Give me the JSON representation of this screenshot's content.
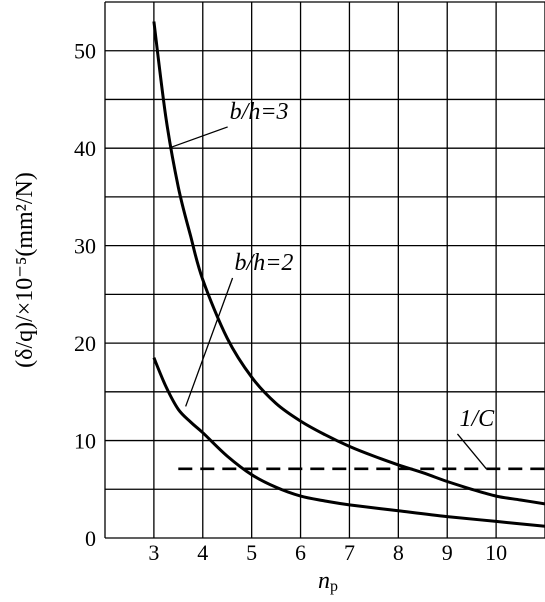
{
  "chart_data": {
    "type": "line",
    "xlabel": "n",
    "xlabel_sub": "p",
    "ylabel": "(δ/q)/×10⁻⁵(mm²/N)",
    "xlim": [
      2,
      11
    ],
    "ylim": [
      0,
      55
    ],
    "x_ticks": [
      3,
      4,
      5,
      6,
      7,
      8,
      9,
      10
    ],
    "x_grid": [
      2,
      3,
      4,
      5,
      6,
      7,
      8,
      9,
      10,
      11
    ],
    "y_ticks": [
      0,
      10,
      20,
      30,
      40,
      50
    ],
    "y_grid": [
      0,
      5,
      10,
      15,
      20,
      25,
      30,
      35,
      40,
      45,
      50,
      55
    ],
    "grid": true,
    "series": [
      {
        "name": "b/h=3",
        "style": "solid",
        "x": [
          3,
          3.25,
          3.5,
          3.75,
          4,
          4.5,
          5,
          5.5,
          6,
          6.5,
          7,
          7.5,
          8,
          8.5,
          9,
          9.5,
          10,
          10.5,
          11
        ],
        "y": [
          53,
          43,
          36,
          31,
          26.5,
          20.5,
          16.5,
          13.8,
          12,
          10.6,
          9.4,
          8.4,
          7.5,
          6.7,
          5.8,
          5.0,
          4.3,
          3.9,
          3.5
        ]
      },
      {
        "name": "b/h=2",
        "style": "solid",
        "x": [
          3,
          3.25,
          3.5,
          3.75,
          4,
          4.5,
          5,
          5.5,
          6,
          6.5,
          7,
          8,
          9,
          10,
          11
        ],
        "y": [
          18.5,
          15.5,
          13.2,
          11.9,
          10.8,
          8.4,
          6.5,
          5.2,
          4.3,
          3.8,
          3.4,
          2.8,
          2.2,
          1.7,
          1.2
        ]
      },
      {
        "name": "1/C",
        "style": "dashed",
        "x": [
          3.5,
          11
        ],
        "y": [
          7.1,
          7.1
        ]
      }
    ],
    "annotations": [
      {
        "text": "b/h=3",
        "series": "b/h=3",
        "anchor": [
          3.3,
          40
        ],
        "label_at": [
          4.55,
          43
        ]
      },
      {
        "text": "b/h=2",
        "series": "b/h=2",
        "anchor": [
          3.65,
          13.5
        ],
        "label_at": [
          4.65,
          27.5
        ]
      },
      {
        "text": "1/C",
        "series": "1/C",
        "anchor": [
          9.8,
          7.1
        ],
        "label_at": [
          9.25,
          11.5
        ]
      }
    ]
  }
}
